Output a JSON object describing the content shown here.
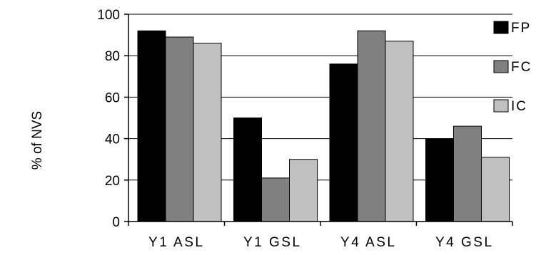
{
  "chart_data": {
    "type": "bar",
    "categories": [
      "Y1 ASL",
      "Y1 GSL",
      "Y4 ASL",
      "Y4 GSL"
    ],
    "series": [
      {
        "name": "FP",
        "values": [
          92,
          50,
          76,
          40
        ],
        "color": "#000000"
      },
      {
        "name": "FC",
        "values": [
          89,
          21,
          92,
          46
        ],
        "color": "#808080"
      },
      {
        "name": "IC",
        "values": [
          86,
          30,
          87,
          31
        ],
        "color": "#c0c0c0"
      }
    ],
    "ylabel": "% of NVS",
    "xlabel": "",
    "ylim": [
      0,
      100
    ],
    "yticks": [
      "0",
      "20",
      "40",
      "60",
      "80",
      "100"
    ],
    "grid": true,
    "legend_position": "right"
  }
}
